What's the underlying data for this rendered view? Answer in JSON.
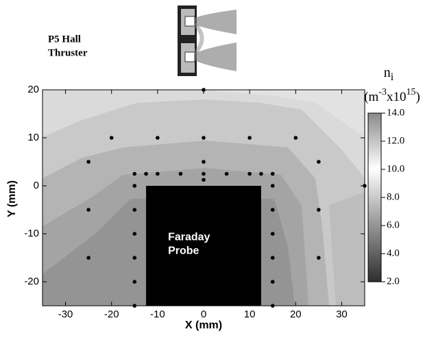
{
  "chart_data": {
    "type": "scatter",
    "annotations": [
      "P5 Hall",
      "Thruster"
    ],
    "xlabel": "X (mm)",
    "ylabel": "Y (mm)",
    "xlim": [
      -35,
      35
    ],
    "ylim": [
      -25,
      20
    ],
    "xticks": [
      -30,
      -20,
      -10,
      0,
      10,
      20,
      30
    ],
    "yticks": [
      -20,
      -10,
      0,
      10,
      20
    ],
    "color": "#000000",
    "series": [
      {
        "x": [
          0,
          -20,
          -10,
          0,
          10,
          20,
          -25,
          0,
          25,
          -15,
          -12.5,
          -10,
          -5,
          0,
          5,
          10,
          12.5,
          15,
          0,
          -15,
          15,
          35,
          -25,
          -15,
          15,
          25,
          -15,
          15,
          -25,
          -15,
          15,
          25,
          -15,
          15,
          -15,
          15
        ],
        "y": [
          20,
          10,
          10,
          10,
          10,
          10,
          5,
          5,
          5,
          2.5,
          2.5,
          2.5,
          2.5,
          2.5,
          2.5,
          2.5,
          2.5,
          2.5,
          1.25,
          0,
          0,
          0,
          -5,
          -5,
          -5,
          -5,
          -10,
          -10,
          -15,
          -15,
          -15,
          -15,
          -20,
          -20,
          -25,
          -25
        ]
      }
    ],
    "probe": {
      "label": [
        "Faraday",
        "Probe"
      ],
      "x": [
        -12.5,
        12.5
      ],
      "y": [
        -25,
        0
      ],
      "color": "#000000"
    },
    "colorbar": {
      "label": {
        "symbol": "n",
        "subscript": "i",
        "open": "(m",
        "exp1": "-3",
        "mid": "x10",
        "exp2": "15",
        "close": ")"
      },
      "clim": [
        2,
        14
      ],
      "ticks": [
        {
          "value": 14,
          "label": "14.0"
        },
        {
          "value": 12,
          "label": "12.0"
        },
        {
          "value": 10,
          "label": "10.0"
        },
        {
          "value": 8,
          "label": "8.0"
        },
        {
          "value": 6,
          "label": "6.0"
        },
        {
          "value": 4,
          "label": "4.0"
        },
        {
          "value": 2,
          "label": "2.0"
        }
      ]
    }
  }
}
